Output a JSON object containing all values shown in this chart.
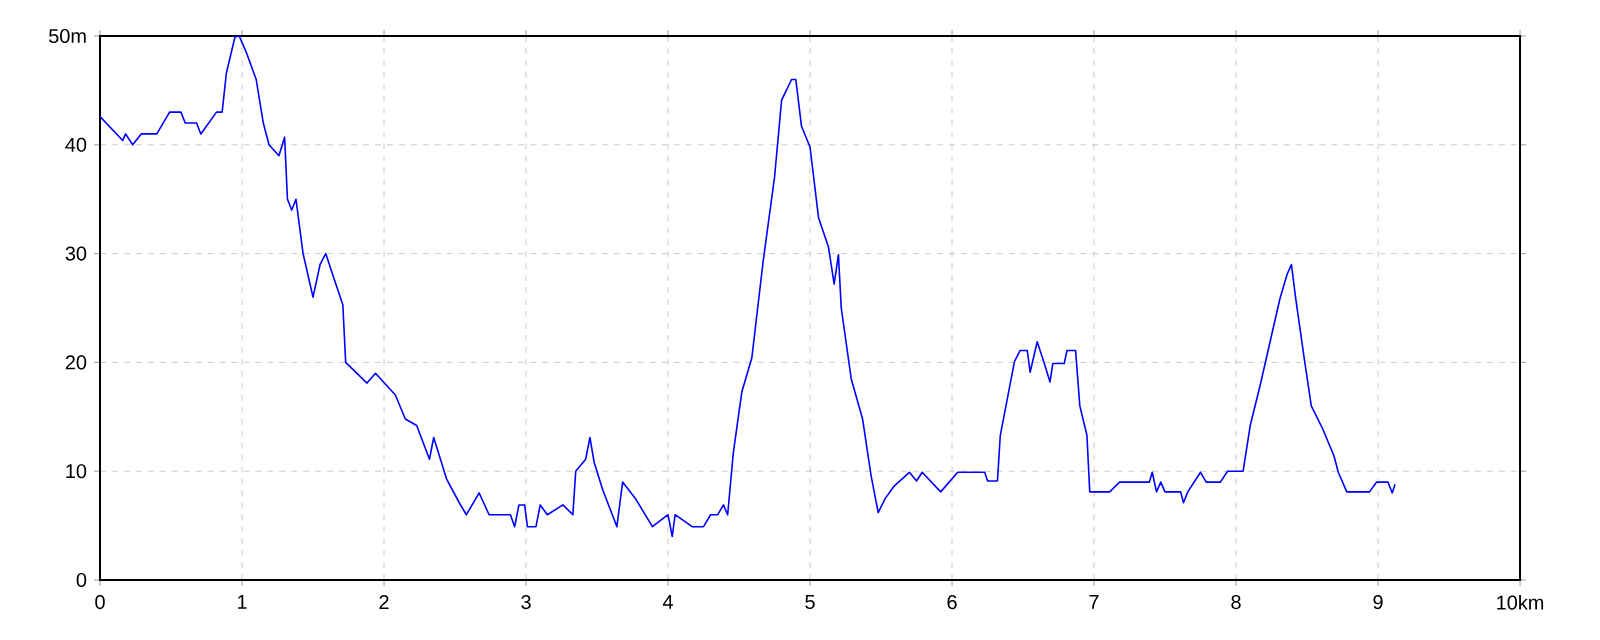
{
  "chart_data": {
    "type": "line",
    "color": "#0000ff",
    "grid": true,
    "marker": "none",
    "line_style": "solid",
    "xlim": [
      0,
      10
    ],
    "ylim": [
      0,
      50
    ],
    "xticks": [
      0,
      1,
      2,
      3,
      4,
      5,
      6,
      7,
      8,
      9,
      {
        "value": 10,
        "label": "10km"
      }
    ],
    "yticks": [
      0,
      10,
      20,
      30,
      40,
      {
        "value": 50,
        "label": "50m"
      }
    ],
    "x": [
      0,
      0.16,
      0.18,
      0.23,
      0.29,
      0.4,
      0.49,
      0.57,
      0.6,
      0.68,
      0.71,
      0.82,
      0.86,
      0.89,
      0.95,
      0.98,
      1.03,
      1.1,
      1.15,
      1.19,
      1.26,
      1.3,
      1.32,
      1.35,
      1.38,
      1.43,
      1.5,
      1.55,
      1.59,
      1.64,
      1.71,
      1.73,
      1.88,
      1.94,
      2.08,
      2.15,
      2.23,
      2.32,
      2.35,
      2.44,
      2.53,
      2.58,
      2.67,
      2.74,
      2.89,
      2.92,
      2.95,
      2.99,
      3.01,
      3.07,
      3.1,
      3.15,
      3.26,
      3.33,
      3.35,
      3.42,
      3.45,
      3.48,
      3.54,
      3.64,
      3.68,
      3.77,
      3.89,
      4.0,
      4.03,
      4.05,
      4.17,
      4.25,
      4.3,
      4.35,
      4.39,
      4.42,
      4.46,
      4.52,
      4.59,
      4.67,
      4.75,
      4.8,
      4.87,
      4.9,
      4.94,
      5.0,
      5.06,
      5.13,
      5.17,
      5.2,
      5.22,
      5.29,
      5.37,
      5.43,
      5.48,
      5.53,
      5.59,
      5.7,
      5.75,
      5.79,
      5.92,
      6.04,
      6.23,
      6.25,
      6.32,
      6.34,
      6.44,
      6.48,
      6.53,
      6.55,
      6.6,
      6.65,
      6.69,
      6.71,
      6.79,
      6.81,
      6.87,
      6.9,
      6.95,
      6.97,
      7.11,
      7.18,
      7.39,
      7.41,
      7.44,
      7.47,
      7.5,
      7.61,
      7.63,
      7.66,
      7.75,
      7.79,
      7.89,
      7.94,
      8.05,
      8.1,
      8.17,
      8.24,
      8.28,
      8.31,
      8.36,
      8.39,
      8.42,
      8.48,
      8.53,
      8.61,
      8.69,
      8.72,
      8.78,
      8.94,
      8.99,
      9.07,
      9.1,
      9.12
    ],
    "values": [
      42.6,
      40.4,
      41,
      40,
      41,
      41,
      43,
      43,
      42,
      42,
      41,
      43,
      43,
      46.6,
      49.9,
      50,
      48.5,
      46,
      42,
      40,
      39,
      40.7,
      35,
      34,
      35,
      30,
      26,
      29,
      30,
      28,
      25.3,
      20,
      18.1,
      19,
      17,
      14.8,
      14.2,
      11.1,
      13.1,
      9.3,
      7.1,
      6,
      8,
      6,
      6,
      4.9,
      6.9,
      6.9,
      4.9,
      4.9,
      6.9,
      6,
      6.9,
      6,
      10,
      11.1,
      13.1,
      10.8,
      8.3,
      4.9,
      9,
      7.5,
      4.9,
      6,
      4,
      6,
      4.9,
      4.9,
      6,
      6,
      6.9,
      6,
      11.7,
      17.3,
      20.4,
      29.3,
      37,
      44.1,
      46,
      46,
      41.7,
      39.8,
      33.3,
      30.6,
      27.2,
      29.9,
      25,
      18.5,
      14.8,
      9.6,
      6.2,
      7.5,
      8.6,
      9.9,
      9.1,
      9.9,
      8.1,
      9.9,
      9.9,
      9.1,
      9.1,
      13.3,
      20.1,
      21.1,
      21.1,
      19.1,
      21.9,
      19.9,
      18.2,
      19.9,
      19.9,
      21.1,
      21.1,
      16,
      13.3,
      8.1,
      8.1,
      9,
      9,
      9.9,
      8.1,
      9,
      8.1,
      8.1,
      7.1,
      8.1,
      9.9,
      9,
      9,
      10,
      10,
      14.2,
      17.9,
      21.9,
      24.2,
      25.9,
      28.1,
      29,
      25.9,
      20.4,
      16,
      13.9,
      11.4,
      9.9,
      8.1,
      8.1,
      9,
      9,
      8,
      8.8
    ]
  }
}
